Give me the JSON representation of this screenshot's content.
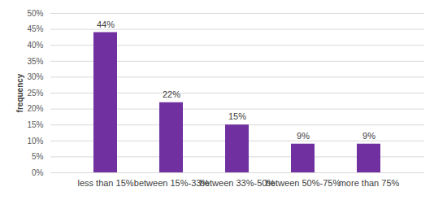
{
  "chart_data": {
    "type": "bar",
    "y_label": "frequency",
    "categories": [
      "less than 15%",
      "between 15%-33%",
      "between 33%-50%",
      "between 50%-75%",
      "more than 75%"
    ],
    "values": [
      44,
      22,
      15,
      9,
      9
    ],
    "value_labels": [
      "44%",
      "22%",
      "15%",
      "9%",
      "9%"
    ],
    "data_labels": true,
    "color": "#7030a0",
    "ylim": [
      0,
      50
    ],
    "yticks": [
      {
        "value": 0,
        "label": "0%"
      },
      {
        "value": 5,
        "label": "5%"
      },
      {
        "value": 10,
        "label": "10%"
      },
      {
        "value": 15,
        "label": "15%"
      },
      {
        "value": 20,
        "label": "20%"
      },
      {
        "value": 25,
        "label": "25%"
      },
      {
        "value": 30,
        "label": "30%"
      },
      {
        "value": 35,
        "label": "35%"
      },
      {
        "value": 40,
        "label": "40%"
      },
      {
        "value": 45,
        "label": "45%"
      },
      {
        "value": 50,
        "label": "50%"
      }
    ],
    "grid": true
  }
}
